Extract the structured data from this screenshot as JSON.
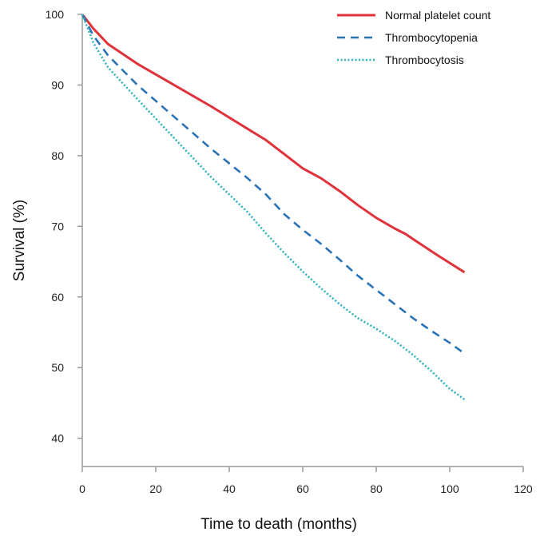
{
  "chart_data": {
    "type": "line",
    "xlabel": "Time to death (months)",
    "ylabel": "Survival (%)",
    "xlim": [
      0,
      120
    ],
    "ylim": [
      36,
      100
    ],
    "xticks": [
      0,
      20,
      40,
      60,
      80,
      100,
      120
    ],
    "yticks": [
      40,
      50,
      60,
      70,
      80,
      90,
      100
    ],
    "grid": false,
    "legend_position": "top-right",
    "series": [
      {
        "name": "Normal platelet count",
        "color": "#e0323a",
        "style": "solid",
        "x": [
          0,
          3,
          7,
          15,
          25,
          35,
          45,
          50,
          55,
          60,
          65,
          70,
          75,
          80,
          83,
          85,
          88,
          92,
          97,
          104
        ],
        "y": [
          100,
          98,
          95.8,
          93,
          90,
          87,
          83.8,
          82.2,
          80.2,
          78.2,
          76.8,
          75,
          73,
          71.2,
          70.3,
          69.7,
          68.9,
          67.5,
          65.8,
          63.5
        ]
      },
      {
        "name": "Thrombocytopenia",
        "color": "#2a72b6",
        "style": "dashed",
        "x": [
          0,
          3,
          7,
          15,
          25,
          35,
          45,
          50,
          55,
          60,
          65,
          70,
          75,
          80,
          85,
          90,
          95,
          100,
          104
        ],
        "y": [
          100,
          97,
          94.2,
          90,
          85.5,
          81,
          76.8,
          74.5,
          71.7,
          69.5,
          67.5,
          65.3,
          63,
          61,
          59,
          57,
          55.2,
          53.5,
          52
        ]
      },
      {
        "name": "Thrombocytosis",
        "color": "#2fb3bd",
        "style": "dotted",
        "x": [
          0,
          3,
          7,
          15,
          25,
          35,
          45,
          50,
          55,
          60,
          65,
          70,
          75,
          80,
          82,
          85,
          90,
          95,
          97,
          100,
          104
        ],
        "y": [
          100,
          96,
          92.5,
          88,
          82.5,
          77,
          72,
          69,
          66.2,
          63.6,
          61.2,
          59,
          57,
          55.5,
          54.8,
          53.8,
          51.8,
          49.5,
          48.5,
          47,
          45.5
        ]
      }
    ]
  }
}
